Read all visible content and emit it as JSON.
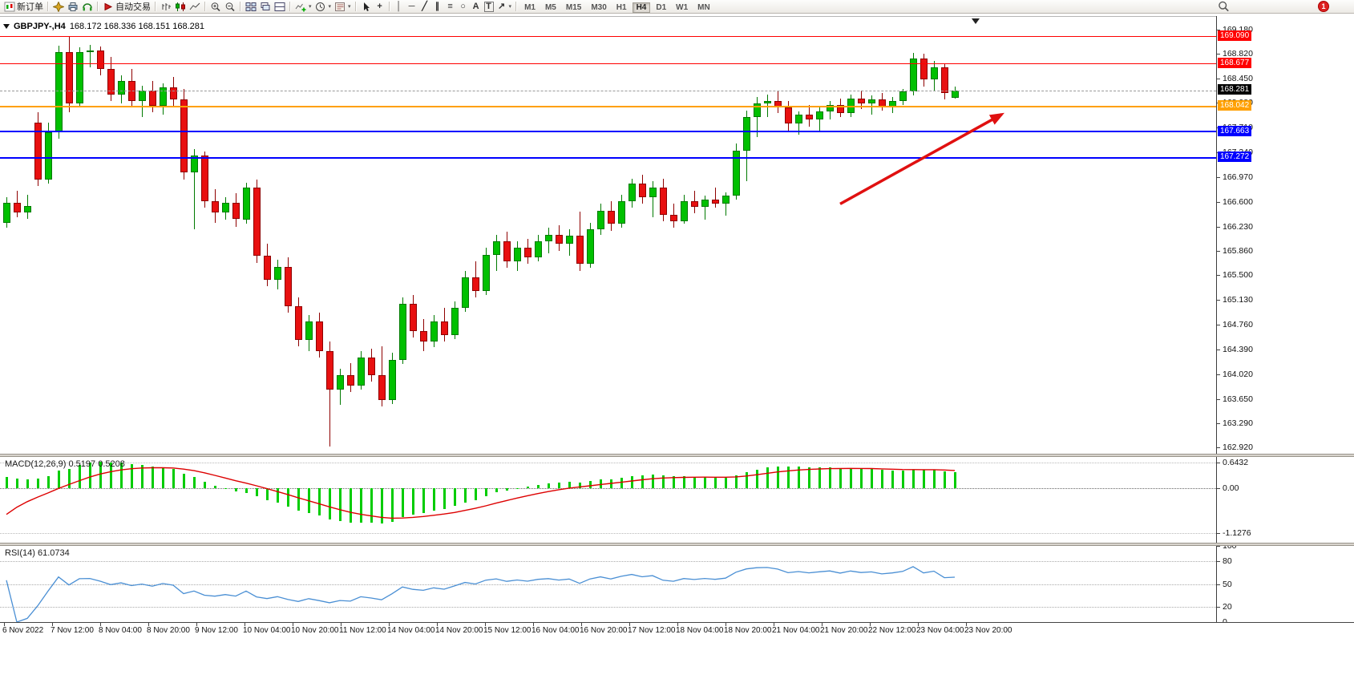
{
  "toolbar": {
    "new_order_label": "新订单",
    "auto_trading_label": "自动交易",
    "timeframe_buttons": [
      "M1",
      "M5",
      "M15",
      "M30",
      "H1",
      "H4",
      "D1",
      "W1",
      "MN"
    ],
    "active_timeframe": "H4",
    "notification_badge": "1",
    "tool_glyphs": {
      "crosshair": "+",
      "vertical_line": "│",
      "horizontal_line": "─",
      "trendline": "╱",
      "channel": "∥",
      "fibonacci": "≡",
      "shapes": "○",
      "text": "A",
      "text_label": "T",
      "arrows": "↗",
      "caret": "▾"
    }
  },
  "chart": {
    "title": "GBPJPY-,H4",
    "ohlc_text": "168.172 168.336 168.151 168.281",
    "current_price": "168.281",
    "current_price_tag_color": "#000000",
    "levels": [
      {
        "price": 169.09,
        "label": "169.090",
        "color": "#FF0000",
        "thickness": 1
      },
      {
        "price": 168.677,
        "label": "168.677",
        "color": "#FF0000",
        "thickness": 1
      },
      {
        "price": 168.042,
        "label": "168.042",
        "color": "#FFA000",
        "thickness": 2
      },
      {
        "price": 167.663,
        "label": "167.663",
        "color": "#0000FF",
        "thickness": 2
      },
      {
        "price": 167.272,
        "label": "167.272",
        "color": "#0000FF",
        "thickness": 2
      }
    ]
  },
  "chart_data": {
    "type": "candlestick",
    "symbol": "GBPJPY-",
    "timeframe": "H4",
    "bg": "#FFFFFF",
    "up_color": "#00C000",
    "up_border": "#007A00",
    "down_color": "#E81010",
    "down_border": "#8F0000",
    "price_range": [
      162.83,
      169.38
    ],
    "price_axis_labels": [
      "169.180",
      "168.820",
      "168.450",
      "168.080",
      "167.710",
      "167.340",
      "166.970",
      "166.600",
      "166.230",
      "165.860",
      "165.500",
      "165.130",
      "164.760",
      "164.390",
      "164.020",
      "163.650",
      "163.290",
      "162.920"
    ],
    "time_axis_labels": [
      "6 Nov 2022",
      "7 Nov 12:00",
      "8 Nov 04:00",
      "8 Nov 20:00",
      "9 Nov 12:00",
      "10 Nov 04:00",
      "10 Nov 20:00",
      "11 Nov 12:00",
      "14 Nov 04:00",
      "14 Nov 20:00",
      "15 Nov 12:00",
      "16 Nov 04:00",
      "16 Nov 20:00",
      "17 Nov 12:00",
      "18 Nov 04:00",
      "18 Nov 20:00",
      "21 Nov 04:00",
      "21 Nov 20:00",
      "22 Nov 12:00",
      "23 Nov 04:00",
      "23 Nov 20:00"
    ],
    "last_ohlc": {
      "open": 168.172,
      "high": 168.336,
      "low": 168.151,
      "close": 168.281
    },
    "candles_ohlc": [
      [
        166.3,
        166.68,
        166.22,
        166.6
      ],
      [
        166.6,
        166.78,
        166.38,
        166.45
      ],
      [
        166.45,
        166.72,
        166.35,
        166.55
      ],
      [
        167.8,
        167.95,
        166.85,
        166.95
      ],
      [
        166.95,
        167.8,
        166.88,
        167.65
      ],
      [
        167.65,
        168.95,
        167.55,
        168.85
      ],
      [
        168.85,
        169.09,
        167.95,
        168.08
      ],
      [
        168.08,
        168.92,
        168.02,
        168.85
      ],
      [
        168.85,
        168.96,
        168.62,
        168.88
      ],
      [
        168.88,
        168.94,
        168.5,
        168.6
      ],
      [
        168.6,
        168.78,
        168.12,
        168.22
      ],
      [
        168.22,
        168.5,
        168.08,
        168.42
      ],
      [
        168.42,
        168.6,
        168.02,
        168.12
      ],
      [
        168.12,
        168.35,
        167.88,
        168.28
      ],
      [
        168.28,
        168.42,
        167.95,
        168.05
      ],
      [
        168.05,
        168.38,
        167.92,
        168.32
      ],
      [
        168.32,
        168.48,
        168.05,
        168.15
      ],
      [
        168.15,
        168.3,
        166.95,
        167.05
      ],
      [
        167.05,
        167.4,
        166.2,
        167.3
      ],
      [
        167.3,
        167.36,
        166.52,
        166.62
      ],
      [
        166.62,
        166.8,
        166.3,
        166.45
      ],
      [
        166.45,
        166.68,
        166.34,
        166.6
      ],
      [
        166.6,
        166.74,
        166.24,
        166.35
      ],
      [
        166.35,
        166.9,
        166.28,
        166.82
      ],
      [
        166.82,
        166.95,
        165.7,
        165.8
      ],
      [
        165.8,
        165.98,
        165.35,
        165.45
      ],
      [
        165.45,
        165.74,
        165.3,
        165.64
      ],
      [
        165.64,
        165.78,
        164.95,
        165.05
      ],
      [
        165.05,
        165.18,
        164.45,
        164.55
      ],
      [
        164.55,
        164.92,
        164.38,
        164.82
      ],
      [
        164.82,
        164.95,
        164.28,
        164.38
      ],
      [
        164.38,
        164.52,
        162.95,
        163.8
      ],
      [
        163.8,
        164.12,
        163.58,
        164.02
      ],
      [
        164.02,
        164.2,
        163.76,
        163.86
      ],
      [
        163.86,
        164.38,
        163.8,
        164.28
      ],
      [
        164.28,
        164.42,
        163.92,
        164.02
      ],
      [
        164.02,
        164.45,
        163.55,
        163.65
      ],
      [
        163.65,
        164.35,
        163.58,
        164.25
      ],
      [
        164.25,
        165.18,
        164.18,
        165.08
      ],
      [
        165.08,
        165.22,
        164.58,
        164.68
      ],
      [
        164.68,
        164.86,
        164.38,
        164.52
      ],
      [
        164.52,
        164.92,
        164.44,
        164.82
      ],
      [
        164.82,
        165.02,
        164.52,
        164.62
      ],
      [
        164.62,
        165.12,
        164.56,
        165.02
      ],
      [
        165.02,
        165.58,
        164.96,
        165.48
      ],
      [
        165.48,
        165.72,
        165.18,
        165.28
      ],
      [
        165.28,
        165.92,
        165.22,
        165.82
      ],
      [
        165.82,
        166.12,
        165.58,
        166.02
      ],
      [
        166.02,
        166.16,
        165.62,
        165.72
      ],
      [
        165.72,
        166.02,
        165.58,
        165.92
      ],
      [
        165.92,
        166.06,
        165.68,
        165.78
      ],
      [
        165.78,
        166.12,
        165.72,
        166.02
      ],
      [
        166.02,
        166.22,
        165.84,
        166.12
      ],
      [
        166.12,
        166.26,
        165.88,
        165.98
      ],
      [
        165.98,
        166.2,
        165.8,
        166.1
      ],
      [
        166.1,
        166.46,
        165.58,
        165.68
      ],
      [
        165.68,
        166.3,
        165.62,
        166.2
      ],
      [
        166.2,
        166.58,
        166.12,
        166.48
      ],
      [
        166.48,
        166.62,
        166.18,
        166.28
      ],
      [
        166.28,
        166.72,
        166.22,
        166.62
      ],
      [
        166.62,
        166.96,
        166.52,
        166.88
      ],
      [
        166.88,
        167.02,
        166.58,
        166.68
      ],
      [
        166.68,
        166.92,
        166.38,
        166.82
      ],
      [
        166.82,
        166.96,
        166.32,
        166.42
      ],
      [
        166.42,
        166.58,
        166.22,
        166.32
      ],
      [
        166.32,
        166.72,
        166.28,
        166.62
      ],
      [
        166.62,
        166.78,
        166.44,
        166.54
      ],
      [
        166.54,
        166.7,
        166.35,
        166.65
      ],
      [
        166.65,
        166.82,
        166.52,
        166.58
      ],
      [
        166.58,
        166.75,
        166.4,
        166.7
      ],
      [
        166.7,
        167.48,
        166.64,
        167.38
      ],
      [
        167.38,
        167.98,
        166.92,
        167.88
      ],
      [
        167.88,
        168.18,
        167.58,
        168.08
      ],
      [
        168.08,
        168.22,
        167.88,
        168.12
      ],
      [
        168.12,
        168.26,
        167.94,
        168.02
      ],
      [
        168.02,
        168.12,
        167.68,
        167.78
      ],
      [
        167.78,
        167.96,
        167.62,
        167.92
      ],
      [
        167.92,
        168.06,
        167.74,
        167.84
      ],
      [
        167.84,
        168.02,
        167.68,
        167.96
      ],
      [
        167.96,
        168.12,
        167.84,
        168.06
      ],
      [
        168.06,
        168.16,
        167.88,
        167.94
      ],
      [
        167.94,
        168.22,
        167.88,
        168.16
      ],
      [
        168.16,
        168.28,
        168.0,
        168.08
      ],
      [
        168.08,
        168.2,
        167.92,
        168.14
      ],
      [
        168.14,
        168.24,
        167.98,
        168.04
      ],
      [
        168.04,
        168.18,
        167.94,
        168.12
      ],
      [
        168.12,
        168.3,
        168.06,
        168.26
      ],
      [
        168.26,
        168.84,
        168.2,
        168.76
      ],
      [
        168.76,
        168.83,
        168.34,
        168.44
      ],
      [
        168.44,
        168.72,
        168.28,
        168.62
      ],
      [
        168.62,
        168.67,
        168.14,
        168.24
      ],
      [
        168.172,
        168.336,
        168.151,
        168.281
      ]
    ]
  },
  "indicators": {
    "macd": {
      "name": "MACD(12,26,9)",
      "value_main": "0.5197",
      "value_signal": "0.5208",
      "fast": 12,
      "slow": 26,
      "signal_period": 9,
      "axis_labels": [
        "0.6432",
        "0.00",
        "-1.1276"
      ],
      "histogram_color": "#00CC00",
      "signal_color": "#DD0000",
      "value_range": [
        -1.38,
        0.79
      ]
    },
    "rsi": {
      "name": "RSI(14)",
      "value": "61.0734",
      "period": 14,
      "axis_labels": [
        "100",
        "80",
        "50",
        "20",
        "0"
      ],
      "level_lines": [
        80,
        50,
        20
      ],
      "line_color": "#4A8FD4",
      "value_range": [
        0,
        100
      ]
    }
  },
  "annotations": {
    "trend_arrow": {
      "color": "#E01010",
      "width": 3.5,
      "from_bar": 80,
      "from_price": 166.58,
      "to_bar": 95.5,
      "to_price": 167.92
    }
  }
}
